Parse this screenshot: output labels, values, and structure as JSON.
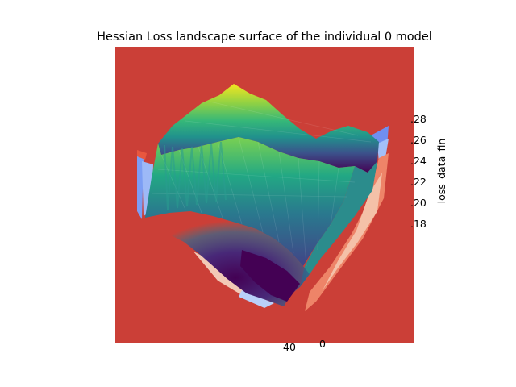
{
  "chart_data": {
    "type": "surface",
    "title": "Hessian Loss landscape surface of the individual 0 model",
    "zlabel": "loss_data_fin",
    "z_ticks": [
      ".28",
      ".26",
      ".24",
      ".22",
      ".20",
      ".18"
    ],
    "z_range": [
      0.17,
      0.29
    ],
    "x_ticks": [
      "40"
    ],
    "y_ticks": [
      "0"
    ],
    "colormap_surface": "viridis",
    "colormap_contours": "coolwarm",
    "colors": {
      "pane": "#cb3f37",
      "surface_high": "#f4e61f",
      "surface_mid": "#21918c",
      "surface_low": "#440154",
      "contour_blue": "#6f8ff0",
      "contour_light": "#f2c9b6",
      "contour_orange": "#ee8468"
    }
  }
}
